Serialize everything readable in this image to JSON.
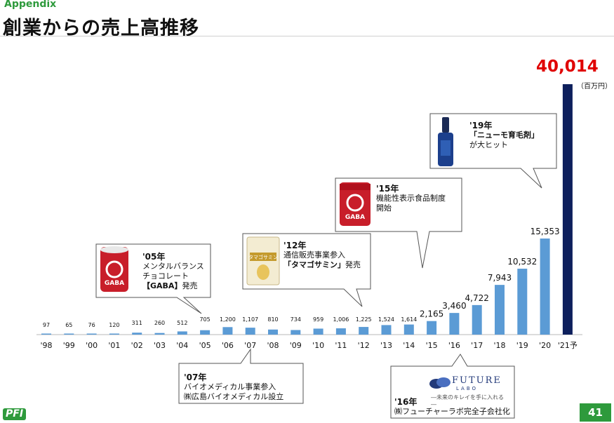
{
  "header": {
    "appendix": "Appendix",
    "title": "創業からの売上高推移"
  },
  "chart_data": {
    "type": "bar",
    "categories": [
      "'98",
      "'99",
      "'00",
      "'01",
      "'02",
      "'03",
      "'04",
      "'05",
      "'06",
      "'07",
      "'08",
      "'09",
      "'10",
      "'11",
      "'12",
      "'13",
      "'14",
      "'15",
      "'16",
      "'17",
      "'18",
      "'19",
      "'20",
      "'21予"
    ],
    "values": [
      97,
      65,
      76,
      120,
      311,
      260,
      512,
      705,
      1200,
      1107,
      810,
      734,
      959,
      1006,
      1225,
      1524,
      1614,
      2165,
      3460,
      4722,
      7943,
      10532,
      15353,
      40014
    ],
    "value_labels": [
      "97",
      "65",
      "76",
      "120",
      "311",
      "260",
      "512",
      "705",
      "1,200",
      "1,107",
      "810",
      "734",
      "959",
      "1,006",
      "1,225",
      "1,524",
      "1,614",
      "2,165",
      "3,460",
      "4,722",
      "7,943",
      "10,532",
      "15,353",
      "40,014"
    ],
    "unit": "（百万円）",
    "colors": {
      "bar": "#5b9bd5",
      "forecast_bar": "#0d1f5c",
      "total_label": "#e00000"
    },
    "ylim": [
      0,
      40014
    ]
  },
  "callouts": {
    "c05": {
      "year": "'05年",
      "line1": "メンタルバランス",
      "line2": "チョコレート",
      "line3_bold": "【GABA】",
      "line3_rest": "発売",
      "image": "gaba-can-icon"
    },
    "c07": {
      "year": "'07年",
      "line1": "バイオメディカル事業参入",
      "line2": "㈱広島バイオメディカル設立"
    },
    "c12": {
      "year": "'12年",
      "line1": "通信販売事業参入",
      "line2_bold": "「タマゴサミン」",
      "line2_rest": "発売",
      "image": "tamagosamin-pack-icon"
    },
    "c15": {
      "year": "'15年",
      "line1": "機能性表示食品制度",
      "line2": "開始",
      "image": "gaba-pack-icon"
    },
    "c16": {
      "year": "'16年",
      "line1": "㈱フューチャーラボ完全子会社化",
      "logo_name": "FUTURE",
      "logo_sub": "LABO",
      "logo_tag": "―未来のキレイを手に入れる―"
    },
    "c19": {
      "year": "'19年",
      "line1": "「ニューモ育毛剤」",
      "line2": "が大ヒット",
      "image": "hair-tonic-bottle-icon"
    }
  },
  "footer": {
    "logo": "PFI",
    "page_number": "41"
  }
}
